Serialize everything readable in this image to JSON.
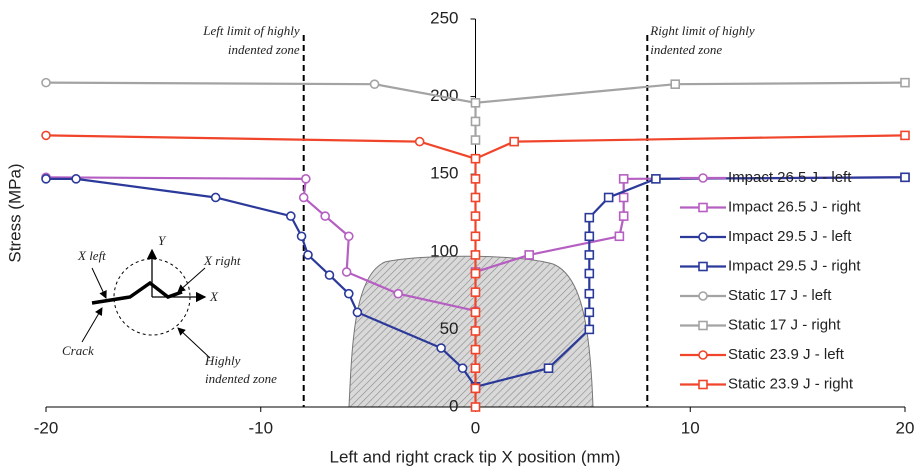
{
  "chart_data": {
    "type": "line",
    "xlabel": "Left and right crack tip X position (mm)",
    "ylabel": "Stress (MPa)",
    "xlim": [
      -20,
      20
    ],
    "xticks": [
      -20,
      -10,
      0,
      10,
      20
    ],
    "ylim": [
      0,
      250
    ],
    "yticks": [
      0,
      50,
      100,
      150,
      200,
      250
    ],
    "grid": false,
    "legend": "lower right",
    "vlines": [
      {
        "x": -8,
        "label_lines": [
          "Left limit of highly",
          "indented zone"
        ]
      },
      {
        "x": 8,
        "label_lines": [
          "Right limit of highly",
          "indented zone"
        ]
      }
    ],
    "inset_labels": {
      "x_left": "X left",
      "y": "Y",
      "x_right": "X right",
      "x": "X",
      "crack": "Crack",
      "zone": [
        "Highly",
        "indented zone"
      ]
    },
    "series": [
      {
        "name": "Impact 26.5 J - left",
        "color": "#b65fc2",
        "marker": "circle",
        "x": [
          -20,
          -7.9,
          -8.0,
          -7.0,
          -5.9,
          -6.0,
          -3.6,
          0
        ],
        "values": [
          148,
          147,
          135,
          123,
          110,
          87,
          73,
          62
        ]
      },
      {
        "name": "Impact 26.5 J - right",
        "color": "#b65fc2",
        "marker": "square",
        "x": [
          0,
          2.5,
          6.7,
          6.9,
          6.9,
          6.9,
          20
        ],
        "values": [
          87,
          98,
          110,
          123,
          135,
          147,
          148
        ]
      },
      {
        "name": "Impact 29.5 J - left",
        "color": "#2b3a9a",
        "marker": "circle",
        "x": [
          -20,
          -18.6,
          -12.1,
          -8.6,
          -8.1,
          -7.8,
          -6.8,
          -5.9,
          -5.5,
          -1.6,
          -0.6,
          0
        ],
        "values": [
          147,
          147,
          135,
          123,
          110,
          98,
          85,
          73,
          61,
          38,
          25,
          13
        ]
      },
      {
        "name": "Impact 29.5 J - right",
        "color": "#2b3a9a",
        "marker": "square",
        "x": [
          0,
          3.4,
          5.3,
          5.3,
          5.3,
          5.3,
          5.3,
          5.3,
          5.3,
          6.2,
          8.4,
          20
        ],
        "values": [
          13,
          25,
          50,
          61,
          73,
          86,
          98,
          110,
          122,
          135,
          147,
          148
        ]
      },
      {
        "name": "Static 17 J - left",
        "color": "#a3a3a3",
        "marker": "circle",
        "x": [
          -20,
          -4.7,
          0
        ],
        "values": [
          209,
          208,
          196
        ]
      },
      {
        "name": "Static 17 J - right",
        "color": "#a3a3a3",
        "marker": "square",
        "x": [
          0,
          0,
          0,
          9.3,
          20
        ],
        "values": [
          172,
          184,
          196,
          208,
          209
        ]
      },
      {
        "name": "Static 23.9 J - left",
        "color": "#f0452b",
        "marker": "circle",
        "x": [
          -20,
          -2.6,
          0
        ],
        "values": [
          175,
          171,
          160
        ]
      },
      {
        "name": "Static 23.9 J - right",
        "color": "#f0452b",
        "marker": "square",
        "x": [
          0,
          0,
          0,
          0,
          0,
          0,
          0,
          0,
          0,
          0,
          0,
          0,
          0,
          0,
          1.8,
          20
        ],
        "values": [
          0,
          12,
          25,
          37,
          49,
          61,
          74,
          86,
          98,
          110,
          123,
          135,
          147,
          160,
          171,
          175
        ]
      }
    ]
  }
}
